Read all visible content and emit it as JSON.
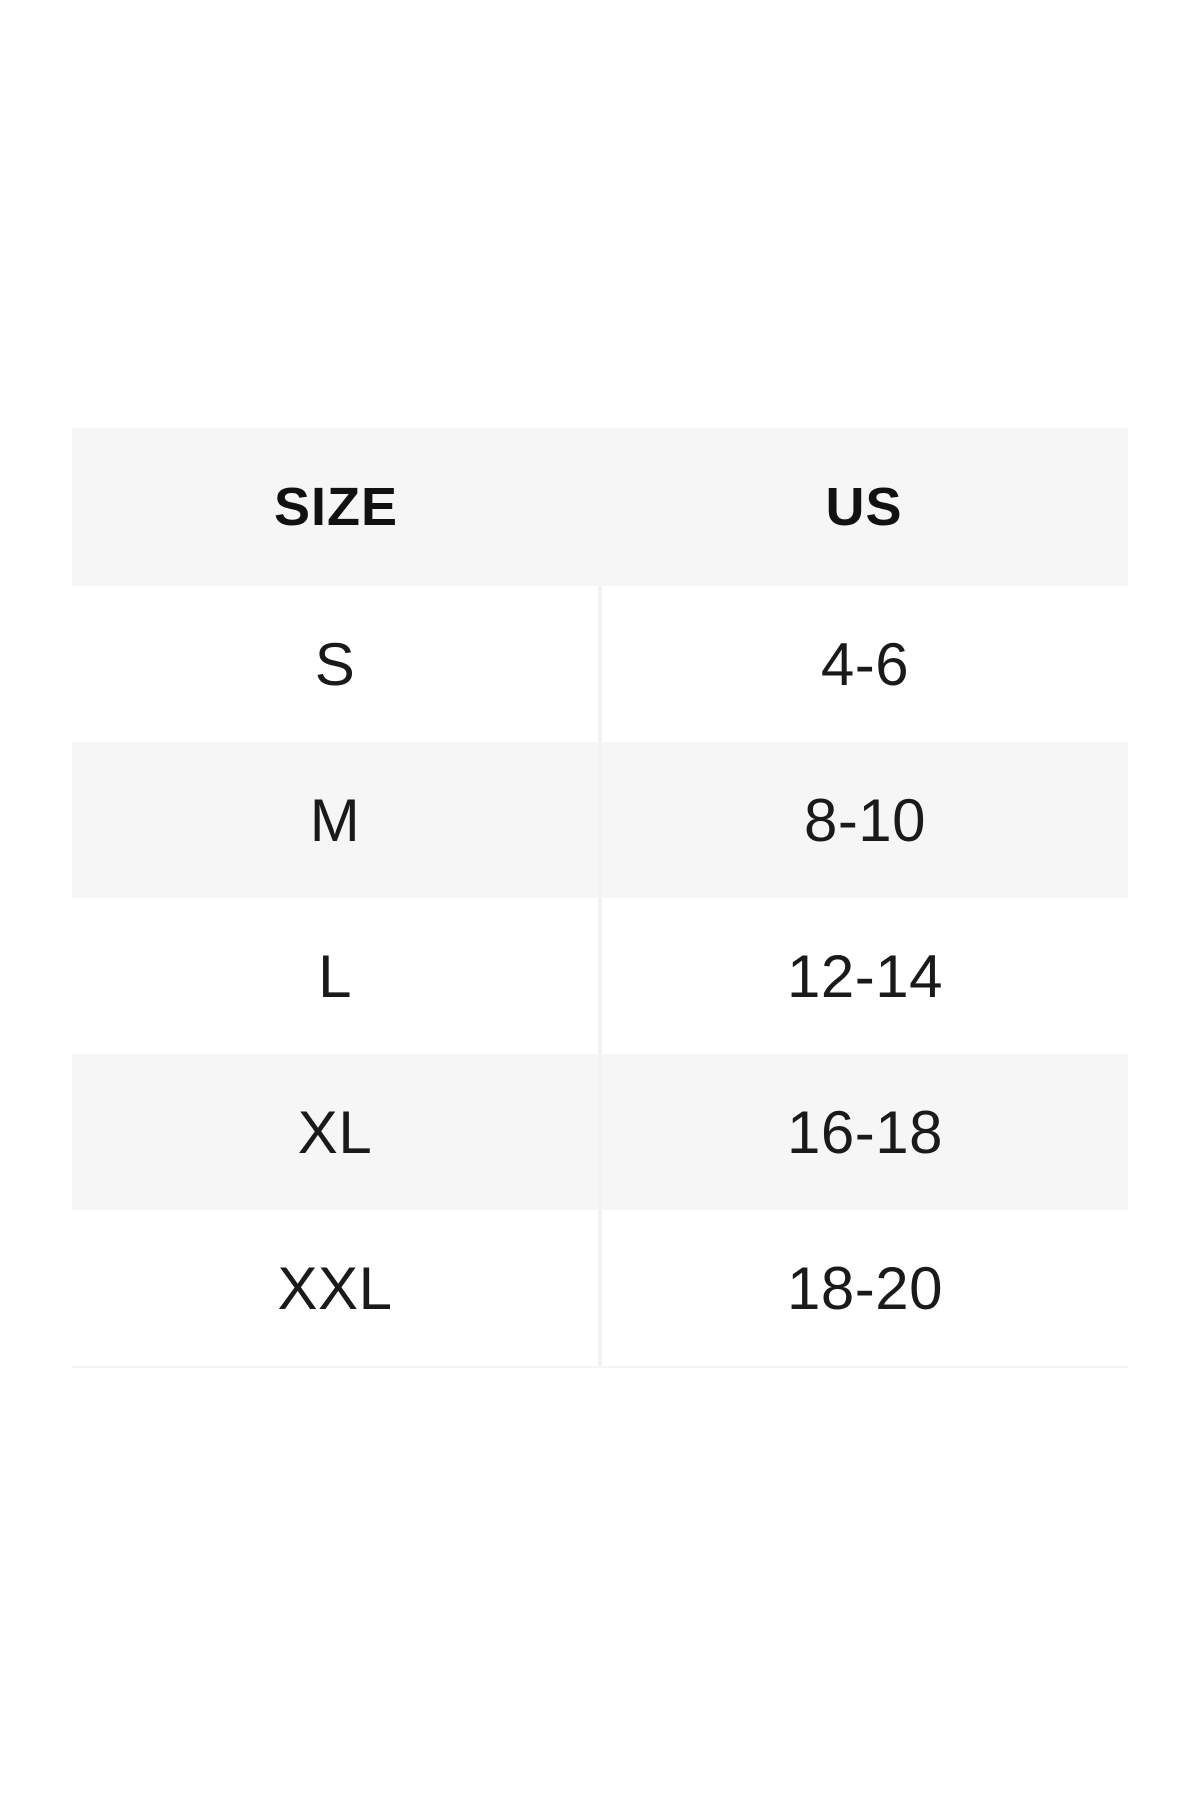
{
  "page": {
    "background_color": "#ffffff"
  },
  "size_chart": {
    "columns": [
      "SIZE",
      "US"
    ],
    "rows": [
      [
        "S",
        "4-6"
      ],
      [
        "M",
        "8-10"
      ],
      [
        "L",
        "12-14"
      ],
      [
        "XL",
        "16-18"
      ],
      [
        "XXL",
        "18-20"
      ]
    ],
    "colors": {
      "stripe_background": "#f6f6f6",
      "row_background": "#ffffff",
      "column_divider": "#f2f2f2",
      "header_text": "#111111",
      "body_text": "#1a1a1a"
    }
  },
  "chart_data": {
    "type": "table",
    "title": "",
    "columns": [
      "SIZE",
      "US"
    ],
    "rows": [
      {
        "size": "S",
        "us": "4-6"
      },
      {
        "size": "M",
        "us": "8-10"
      },
      {
        "size": "L",
        "us": "12-14"
      },
      {
        "size": "XL",
        "us": "16-18"
      },
      {
        "size": "XXL",
        "us": "18-20"
      }
    ],
    "layout_hints": {
      "striped": true,
      "header_background": "#f6f6f6",
      "stripe_order": [
        "white",
        "gray",
        "white",
        "gray",
        "white"
      ],
      "column_split": "50/50",
      "text_align": "center"
    }
  }
}
